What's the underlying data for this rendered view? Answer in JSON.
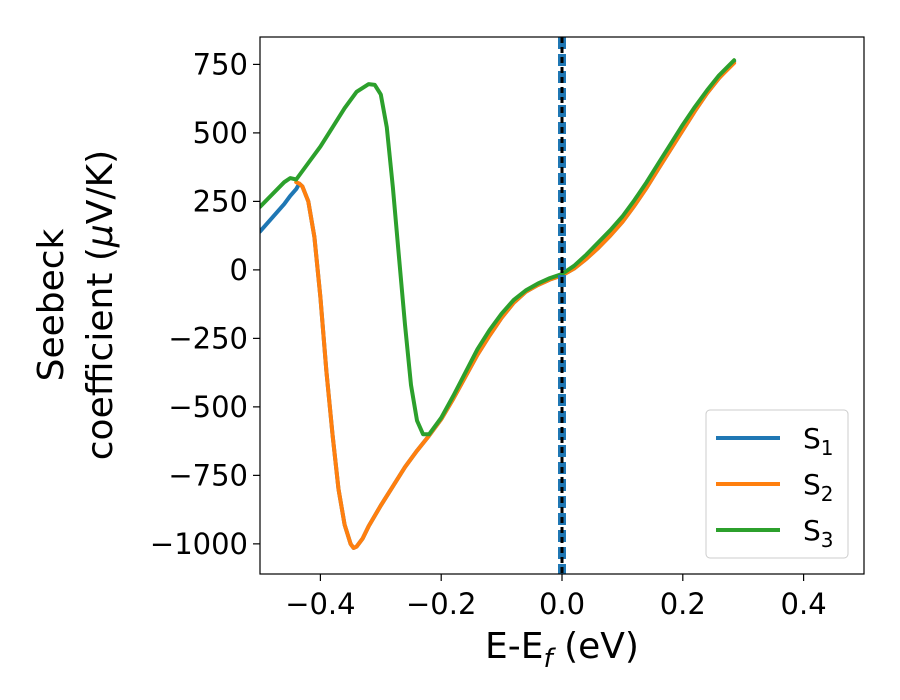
{
  "chart_data": {
    "type": "line",
    "xlabel": "E-E",
    "xlabel_sub": "f",
    "xlabel_unit": " (eV)",
    "ylabel_line1": "Seebeck",
    "ylabel_line2": "coefficient  (",
    "ylabel_mu": "μ",
    "ylabel_unit": "V/K)",
    "xlim": [
      -0.5,
      0.5
    ],
    "ylim": [
      -1110,
      850
    ],
    "xticks": [
      -0.4,
      -0.2,
      0.0,
      0.2,
      0.4
    ],
    "xtick_labels": [
      "−0.4",
      "−0.2",
      "0.0",
      "0.2",
      "0.4"
    ],
    "yticks": [
      750,
      500,
      250,
      0,
      -250,
      -500,
      -750,
      -1000
    ],
    "ytick_labels": [
      "750",
      "500",
      "250",
      "0",
      "−250",
      "−500",
      "−750",
      "−1000"
    ],
    "grid": false,
    "legend_position": "lower-right",
    "vertical_line": {
      "x": 0.0,
      "style": "thick blue dashed with black dashes"
    },
    "series": [
      {
        "name": "S",
        "sub": "1",
        "color": "#1f77b4",
        "points": [
          [
            -0.5,
            140
          ],
          [
            -0.48,
            190
          ],
          [
            -0.46,
            240
          ],
          [
            -0.45,
            270
          ],
          [
            -0.44,
            295
          ],
          [
            -0.435,
            315
          ],
          [
            -0.43,
            305
          ],
          [
            -0.42,
            250
          ],
          [
            -0.41,
            120
          ],
          [
            -0.4,
            -100
          ],
          [
            -0.39,
            -370
          ],
          [
            -0.38,
            -600
          ],
          [
            -0.37,
            -800
          ],
          [
            -0.36,
            -930
          ],
          [
            -0.35,
            -1000
          ],
          [
            -0.345,
            -1015
          ],
          [
            -0.34,
            -1010
          ],
          [
            -0.33,
            -980
          ],
          [
            -0.32,
            -935
          ],
          [
            -0.3,
            -860
          ],
          [
            -0.28,
            -790
          ],
          [
            -0.26,
            -720
          ],
          [
            -0.24,
            -660
          ],
          [
            -0.22,
            -605
          ],
          [
            -0.2,
            -545
          ],
          [
            -0.18,
            -470
          ],
          [
            -0.16,
            -390
          ],
          [
            -0.14,
            -310
          ],
          [
            -0.12,
            -240
          ],
          [
            -0.1,
            -175
          ],
          [
            -0.08,
            -120
          ],
          [
            -0.06,
            -80
          ],
          [
            -0.04,
            -55
          ],
          [
            -0.02,
            -35
          ],
          [
            0.0,
            -20
          ],
          [
            0.02,
            5
          ],
          [
            0.04,
            40
          ],
          [
            0.06,
            80
          ],
          [
            0.08,
            125
          ],
          [
            0.1,
            175
          ],
          [
            0.12,
            235
          ],
          [
            0.14,
            300
          ],
          [
            0.16,
            370
          ],
          [
            0.18,
            440
          ],
          [
            0.2,
            510
          ],
          [
            0.22,
            580
          ],
          [
            0.24,
            645
          ],
          [
            0.26,
            700
          ],
          [
            0.285,
            760
          ]
        ]
      },
      {
        "name": "S",
        "sub": "2",
        "color": "#ff7f0e",
        "points": [
          [
            -0.44,
            320
          ],
          [
            -0.435,
            315
          ],
          [
            -0.43,
            305
          ],
          [
            -0.42,
            250
          ],
          [
            -0.41,
            120
          ],
          [
            -0.4,
            -100
          ],
          [
            -0.39,
            -370
          ],
          [
            -0.38,
            -600
          ],
          [
            -0.37,
            -800
          ],
          [
            -0.36,
            -930
          ],
          [
            -0.35,
            -1000
          ],
          [
            -0.345,
            -1015
          ],
          [
            -0.34,
            -1010
          ],
          [
            -0.33,
            -980
          ],
          [
            -0.32,
            -935
          ],
          [
            -0.3,
            -860
          ],
          [
            -0.28,
            -790
          ],
          [
            -0.26,
            -720
          ],
          [
            -0.24,
            -660
          ],
          [
            -0.22,
            -605
          ],
          [
            -0.2,
            -545
          ],
          [
            -0.18,
            -470
          ],
          [
            -0.16,
            -390
          ],
          [
            -0.14,
            -310
          ],
          [
            -0.12,
            -240
          ],
          [
            -0.1,
            -175
          ],
          [
            -0.08,
            -120
          ],
          [
            -0.06,
            -80
          ],
          [
            -0.04,
            -55
          ],
          [
            -0.02,
            -35
          ],
          [
            0.0,
            -20
          ],
          [
            0.02,
            5
          ],
          [
            0.04,
            40
          ],
          [
            0.06,
            80
          ],
          [
            0.08,
            125
          ],
          [
            0.1,
            175
          ],
          [
            0.12,
            235
          ],
          [
            0.14,
            300
          ],
          [
            0.16,
            370
          ],
          [
            0.18,
            440
          ],
          [
            0.2,
            510
          ],
          [
            0.22,
            580
          ],
          [
            0.24,
            645
          ],
          [
            0.26,
            700
          ],
          [
            0.285,
            755
          ]
        ]
      },
      {
        "name": "S",
        "sub": "3",
        "color": "#2ca02c",
        "points": [
          [
            -0.5,
            230
          ],
          [
            -0.48,
            275
          ],
          [
            -0.46,
            320
          ],
          [
            -0.45,
            335
          ],
          [
            -0.44,
            330
          ],
          [
            -0.42,
            390
          ],
          [
            -0.4,
            450
          ],
          [
            -0.38,
            520
          ],
          [
            -0.36,
            590
          ],
          [
            -0.34,
            650
          ],
          [
            -0.32,
            678
          ],
          [
            -0.31,
            675
          ],
          [
            -0.3,
            640
          ],
          [
            -0.29,
            520
          ],
          [
            -0.28,
            300
          ],
          [
            -0.27,
            50
          ],
          [
            -0.26,
            -200
          ],
          [
            -0.25,
            -420
          ],
          [
            -0.24,
            -550
          ],
          [
            -0.23,
            -600
          ],
          [
            -0.22,
            -600
          ],
          [
            -0.2,
            -540
          ],
          [
            -0.18,
            -460
          ],
          [
            -0.16,
            -375
          ],
          [
            -0.14,
            -290
          ],
          [
            -0.12,
            -220
          ],
          [
            -0.1,
            -160
          ],
          [
            -0.08,
            -110
          ],
          [
            -0.06,
            -75
          ],
          [
            -0.04,
            -50
          ],
          [
            -0.02,
            -30
          ],
          [
            0.0,
            -15
          ],
          [
            0.02,
            15
          ],
          [
            0.04,
            55
          ],
          [
            0.06,
            100
          ],
          [
            0.08,
            145
          ],
          [
            0.1,
            195
          ],
          [
            0.12,
            255
          ],
          [
            0.14,
            320
          ],
          [
            0.16,
            390
          ],
          [
            0.18,
            460
          ],
          [
            0.2,
            530
          ],
          [
            0.22,
            595
          ],
          [
            0.24,
            655
          ],
          [
            0.26,
            710
          ],
          [
            0.285,
            765
          ]
        ]
      }
    ]
  }
}
